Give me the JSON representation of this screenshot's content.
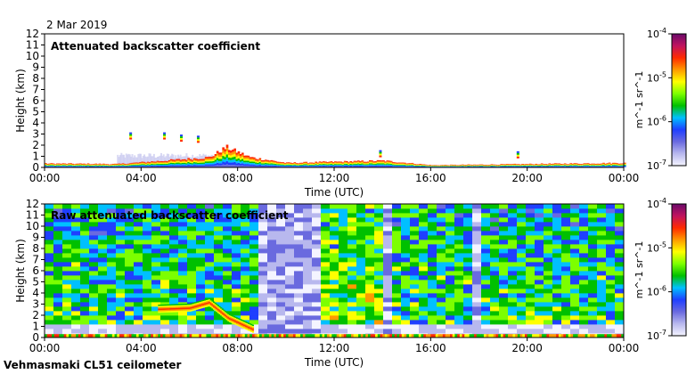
{
  "date_label": "2 Mar 2019",
  "footer_label": "Vehmasmaki CL51 ceilometer",
  "colorbar": {
    "ticks": [
      "10^-4",
      "10^-5",
      "10^-6",
      "10^-7"
    ],
    "label": "m^-1 sr^-1",
    "colors": [
      "#6a0a6a",
      "#c0135f",
      "#ff2a00",
      "#ff9a00",
      "#ffff00",
      "#7cff00",
      "#00c000",
      "#00c0ff",
      "#1f3fff",
      "#6a6adf",
      "#b8b8ee",
      "#f4f4ff"
    ]
  },
  "chart_data": [
    {
      "type": "heatmap",
      "title": "Attenuated backscatter coefficient",
      "xlabel": "Time (UTC)",
      "ylabel": "Height (km)",
      "xticks": [
        "00:00",
        "04:00",
        "08:00",
        "12:00",
        "16:00",
        "20:00",
        "00:00"
      ],
      "yticks": [
        "0",
        "1",
        "2",
        "3",
        "4",
        "5",
        "6",
        "7",
        "8",
        "9",
        "10",
        "11",
        "12"
      ],
      "xlim_hours": [
        0,
        24
      ],
      "ylim_km": [
        0,
        12
      ],
      "boundary_layer_top_km": [
        [
          0,
          0.35
        ],
        [
          3,
          0.3
        ],
        [
          6.8,
          0.9
        ],
        [
          7.5,
          1.8
        ],
        [
          8.5,
          0.9
        ],
        [
          10,
          0.4
        ],
        [
          14,
          0.6
        ],
        [
          16,
          0.2
        ],
        [
          20,
          0.3
        ],
        [
          24,
          0.4
        ]
      ],
      "cloud_features": [
        {
          "time_h": 4.95,
          "height_km": 2.9
        },
        {
          "time_h": 5.65,
          "height_km": 2.7
        },
        {
          "time_h": 6.35,
          "height_km": 2.6
        },
        {
          "time_h": 3.55,
          "height_km": 2.9
        },
        {
          "time_h": 13.9,
          "height_km": 1.3
        },
        {
          "time_h": 19.6,
          "height_km": 1.2
        }
      ]
    },
    {
      "type": "heatmap",
      "title": "Raw attenuated backscatter coefficient",
      "xlabel": "Time (UTC)",
      "ylabel": "Height (km)",
      "xticks": [
        "00:00",
        "04:00",
        "08:00",
        "12:00",
        "16:00",
        "20:00",
        "00:00"
      ],
      "yticks": [
        "0",
        "1",
        "2",
        "3",
        "4",
        "5",
        "6",
        "7",
        "8",
        "9",
        "10",
        "11",
        "12"
      ],
      "xlim_hours": [
        0,
        24
      ],
      "ylim_km": [
        0,
        12
      ],
      "aerosol_layer_km": [
        [
          4.7,
          2.6
        ],
        [
          6,
          2.7
        ],
        [
          6.8,
          3.2
        ],
        [
          7.6,
          1.8
        ],
        [
          8.6,
          0.8
        ]
      ],
      "clear_columns_hours": [
        [
          9.0,
          11.3
        ],
        [
          14.1,
          14.4
        ],
        [
          17.8,
          18.2
        ]
      ]
    }
  ]
}
